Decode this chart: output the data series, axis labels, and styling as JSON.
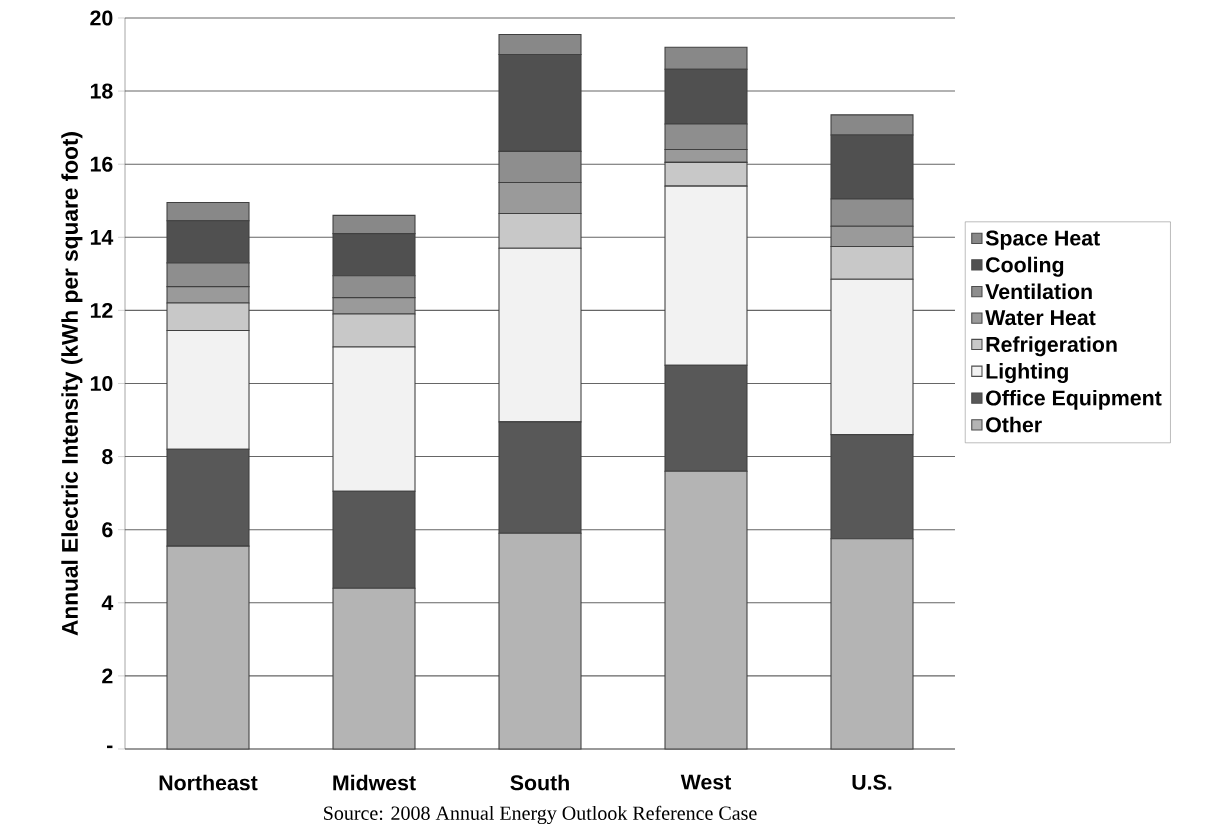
{
  "chart_data": {
    "type": "bar",
    "stacked": true,
    "ylabel": "Annual Electric Intensity (kWh per square foot)",
    "categories": [
      "Northeast",
      "Midwest",
      "South",
      "West",
      "U.S."
    ],
    "series": [
      {
        "name": "Other",
        "color": "#b4b4b4",
        "values": [
          5.55,
          4.4,
          5.9,
          7.6,
          5.75
        ]
      },
      {
        "name": "Office Equipment",
        "color": "#585858",
        "values": [
          2.65,
          2.65,
          3.05,
          2.9,
          2.85
        ]
      },
      {
        "name": "Lighting",
        "color": "#f2f2f2",
        "values": [
          3.25,
          3.95,
          4.75,
          4.9,
          4.25
        ]
      },
      {
        "name": "Refrigeration",
        "color": "#c8c8c8",
        "values": [
          0.75,
          0.9,
          0.95,
          0.65,
          0.9
        ]
      },
      {
        "name": "Water Heat",
        "color": "#9a9a9a",
        "values": [
          0.45,
          0.45,
          0.85,
          0.35,
          0.55
        ]
      },
      {
        "name": "Ventilation",
        "color": "#8e8e8e",
        "values": [
          0.65,
          0.6,
          0.85,
          0.7,
          0.75
        ]
      },
      {
        "name": "Cooling",
        "color": "#505050",
        "values": [
          1.15,
          1.15,
          2.65,
          1.5,
          1.75
        ]
      },
      {
        "name": "Space Heat",
        "color": "#888888",
        "values": [
          0.5,
          0.5,
          0.55,
          0.6,
          0.55
        ]
      }
    ],
    "ylim": [
      0,
      20
    ],
    "yticks": [
      {
        "value": 0,
        "label": "-"
      },
      2,
      4,
      6,
      8,
      10,
      12,
      14,
      16,
      18,
      20
    ],
    "grid": "y",
    "legend": "right",
    "annotations": [
      "Source: 2008 Annual Energy Outlook Reference Case"
    ]
  }
}
